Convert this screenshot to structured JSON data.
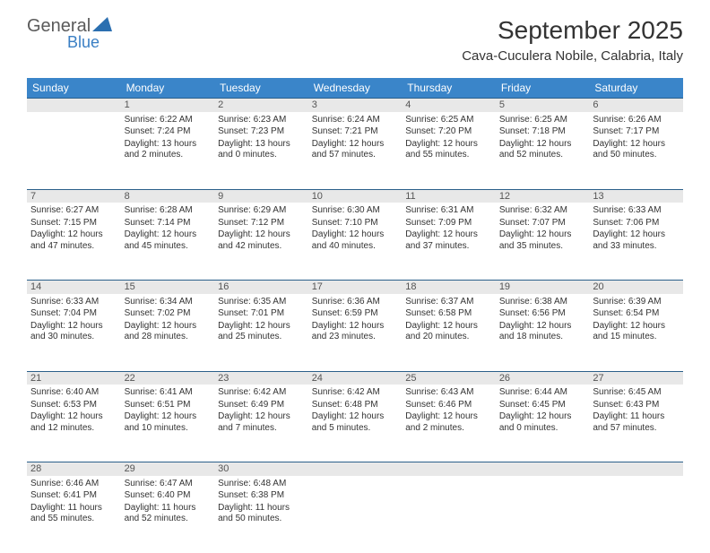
{
  "logo": {
    "general": "General",
    "blue": "Blue"
  },
  "title": {
    "month": "September 2025",
    "location": "Cava-Cuculera Nobile, Calabria, Italy"
  },
  "colors": {
    "header_bg": "#3a85c9",
    "header_text": "#ffffff",
    "daynum_bg": "#e8e8e8",
    "daynum_border": "#2b5f8a",
    "body_text": "#333333",
    "logo_gray": "#5a5a5a",
    "logo_blue": "#3a7fc4"
  },
  "weekdays": [
    "Sunday",
    "Monday",
    "Tuesday",
    "Wednesday",
    "Thursday",
    "Friday",
    "Saturday"
  ],
  "weeks": [
    {
      "nums": [
        "",
        "1",
        "2",
        "3",
        "4",
        "5",
        "6"
      ],
      "cells": [
        null,
        {
          "sunrise": "Sunrise: 6:22 AM",
          "sunset": "Sunset: 7:24 PM",
          "daylight": "Daylight: 13 hours and 2 minutes."
        },
        {
          "sunrise": "Sunrise: 6:23 AM",
          "sunset": "Sunset: 7:23 PM",
          "daylight": "Daylight: 13 hours and 0 minutes."
        },
        {
          "sunrise": "Sunrise: 6:24 AM",
          "sunset": "Sunset: 7:21 PM",
          "daylight": "Daylight: 12 hours and 57 minutes."
        },
        {
          "sunrise": "Sunrise: 6:25 AM",
          "sunset": "Sunset: 7:20 PM",
          "daylight": "Daylight: 12 hours and 55 minutes."
        },
        {
          "sunrise": "Sunrise: 6:25 AM",
          "sunset": "Sunset: 7:18 PM",
          "daylight": "Daylight: 12 hours and 52 minutes."
        },
        {
          "sunrise": "Sunrise: 6:26 AM",
          "sunset": "Sunset: 7:17 PM",
          "daylight": "Daylight: 12 hours and 50 minutes."
        }
      ]
    },
    {
      "nums": [
        "7",
        "8",
        "9",
        "10",
        "11",
        "12",
        "13"
      ],
      "cells": [
        {
          "sunrise": "Sunrise: 6:27 AM",
          "sunset": "Sunset: 7:15 PM",
          "daylight": "Daylight: 12 hours and 47 minutes."
        },
        {
          "sunrise": "Sunrise: 6:28 AM",
          "sunset": "Sunset: 7:14 PM",
          "daylight": "Daylight: 12 hours and 45 minutes."
        },
        {
          "sunrise": "Sunrise: 6:29 AM",
          "sunset": "Sunset: 7:12 PM",
          "daylight": "Daylight: 12 hours and 42 minutes."
        },
        {
          "sunrise": "Sunrise: 6:30 AM",
          "sunset": "Sunset: 7:10 PM",
          "daylight": "Daylight: 12 hours and 40 minutes."
        },
        {
          "sunrise": "Sunrise: 6:31 AM",
          "sunset": "Sunset: 7:09 PM",
          "daylight": "Daylight: 12 hours and 37 minutes."
        },
        {
          "sunrise": "Sunrise: 6:32 AM",
          "sunset": "Sunset: 7:07 PM",
          "daylight": "Daylight: 12 hours and 35 minutes."
        },
        {
          "sunrise": "Sunrise: 6:33 AM",
          "sunset": "Sunset: 7:06 PM",
          "daylight": "Daylight: 12 hours and 33 minutes."
        }
      ]
    },
    {
      "nums": [
        "14",
        "15",
        "16",
        "17",
        "18",
        "19",
        "20"
      ],
      "cells": [
        {
          "sunrise": "Sunrise: 6:33 AM",
          "sunset": "Sunset: 7:04 PM",
          "daylight": "Daylight: 12 hours and 30 minutes."
        },
        {
          "sunrise": "Sunrise: 6:34 AM",
          "sunset": "Sunset: 7:02 PM",
          "daylight": "Daylight: 12 hours and 28 minutes."
        },
        {
          "sunrise": "Sunrise: 6:35 AM",
          "sunset": "Sunset: 7:01 PM",
          "daylight": "Daylight: 12 hours and 25 minutes."
        },
        {
          "sunrise": "Sunrise: 6:36 AM",
          "sunset": "Sunset: 6:59 PM",
          "daylight": "Daylight: 12 hours and 23 minutes."
        },
        {
          "sunrise": "Sunrise: 6:37 AM",
          "sunset": "Sunset: 6:58 PM",
          "daylight": "Daylight: 12 hours and 20 minutes."
        },
        {
          "sunrise": "Sunrise: 6:38 AM",
          "sunset": "Sunset: 6:56 PM",
          "daylight": "Daylight: 12 hours and 18 minutes."
        },
        {
          "sunrise": "Sunrise: 6:39 AM",
          "sunset": "Sunset: 6:54 PM",
          "daylight": "Daylight: 12 hours and 15 minutes."
        }
      ]
    },
    {
      "nums": [
        "21",
        "22",
        "23",
        "24",
        "25",
        "26",
        "27"
      ],
      "cells": [
        {
          "sunrise": "Sunrise: 6:40 AM",
          "sunset": "Sunset: 6:53 PM",
          "daylight": "Daylight: 12 hours and 12 minutes."
        },
        {
          "sunrise": "Sunrise: 6:41 AM",
          "sunset": "Sunset: 6:51 PM",
          "daylight": "Daylight: 12 hours and 10 minutes."
        },
        {
          "sunrise": "Sunrise: 6:42 AM",
          "sunset": "Sunset: 6:49 PM",
          "daylight": "Daylight: 12 hours and 7 minutes."
        },
        {
          "sunrise": "Sunrise: 6:42 AM",
          "sunset": "Sunset: 6:48 PM",
          "daylight": "Daylight: 12 hours and 5 minutes."
        },
        {
          "sunrise": "Sunrise: 6:43 AM",
          "sunset": "Sunset: 6:46 PM",
          "daylight": "Daylight: 12 hours and 2 minutes."
        },
        {
          "sunrise": "Sunrise: 6:44 AM",
          "sunset": "Sunset: 6:45 PM",
          "daylight": "Daylight: 12 hours and 0 minutes."
        },
        {
          "sunrise": "Sunrise: 6:45 AM",
          "sunset": "Sunset: 6:43 PM",
          "daylight": "Daylight: 11 hours and 57 minutes."
        }
      ]
    },
    {
      "nums": [
        "28",
        "29",
        "30",
        "",
        "",
        "",
        ""
      ],
      "cells": [
        {
          "sunrise": "Sunrise: 6:46 AM",
          "sunset": "Sunset: 6:41 PM",
          "daylight": "Daylight: 11 hours and 55 minutes."
        },
        {
          "sunrise": "Sunrise: 6:47 AM",
          "sunset": "Sunset: 6:40 PM",
          "daylight": "Daylight: 11 hours and 52 minutes."
        },
        {
          "sunrise": "Sunrise: 6:48 AM",
          "sunset": "Sunset: 6:38 PM",
          "daylight": "Daylight: 11 hours and 50 minutes."
        },
        null,
        null,
        null,
        null
      ]
    }
  ]
}
